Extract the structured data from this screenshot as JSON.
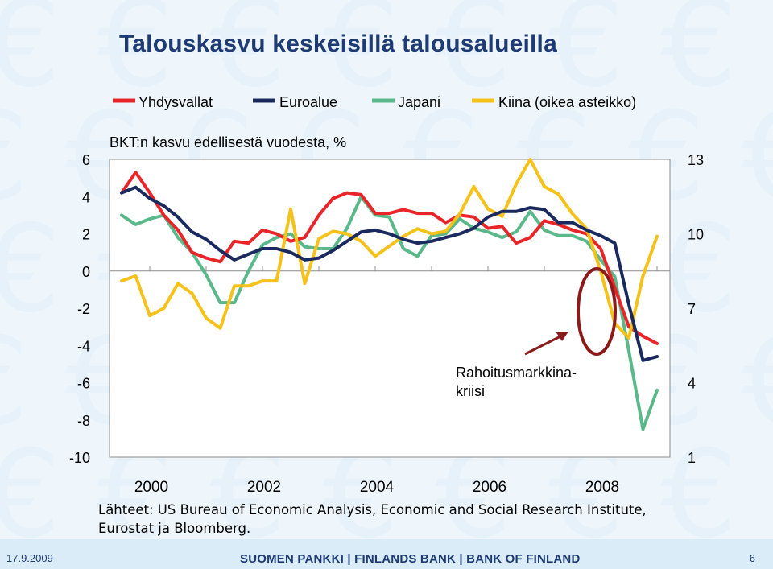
{
  "slide": {
    "title": "Talouskasvu keskeisillä talousalueilla",
    "date": "17.9.2009",
    "brand": "SUOMEN PANKKI | FINLANDS BANK | BANK OF FINLAND",
    "page_number": "6",
    "source_line1": "Lähteet: US Bureau of Economic Analysis, Economic and Social Research Institute,",
    "source_line2": "Eurostat ja Bloomberg."
  },
  "colors": {
    "us": "#e8262a",
    "euro": "#1b2a5e",
    "japan": "#5bb88a",
    "china": "#f5c21b",
    "annotation": "#8b1a1a"
  },
  "chart_data": {
    "type": "line",
    "subtitle": "BKT:n kasvu edellisestä vuodesta, %",
    "annotation": [
      "Rahoitusmarkkina-",
      "kriisi"
    ],
    "x_ticks": [
      "2000",
      "2002",
      "2004",
      "2006",
      "2008"
    ],
    "ylim_left": [
      -10,
      6
    ],
    "ylim_right": [
      1,
      13
    ],
    "y_ticks_left": [
      -10,
      -8,
      -6,
      -4,
      -2,
      0,
      2,
      4,
      6
    ],
    "y_ticks_right": [
      1,
      4,
      7,
      10,
      13
    ],
    "x_start": 1999.5,
    "x_step": 0.25,
    "series": [
      {
        "name": "Yhdysvallat",
        "axis": "left",
        "color_key": "us",
        "values": [
          4.2,
          5.3,
          4.2,
          3.0,
          2.2,
          1.0,
          0.7,
          0.5,
          1.6,
          1.5,
          2.2,
          2.0,
          1.6,
          1.8,
          3.0,
          3.9,
          4.2,
          4.1,
          3.1,
          3.1,
          3.3,
          3.1,
          3.1,
          2.6,
          3.0,
          2.9,
          2.3,
          2.4,
          1.5,
          1.8,
          2.7,
          2.5,
          2.2,
          2.0,
          1.2,
          -0.9,
          -3.0,
          -3.5,
          -3.9
        ]
      },
      {
        "name": "Euroalue",
        "axis": "left",
        "color_key": "euro",
        "values": [
          4.2,
          4.5,
          3.9,
          3.5,
          2.9,
          2.1,
          1.7,
          1.1,
          0.6,
          0.9,
          1.2,
          1.2,
          1.0,
          0.6,
          0.7,
          1.1,
          1.6,
          2.1,
          2.2,
          2.0,
          1.7,
          1.5,
          1.6,
          1.8,
          2.0,
          2.3,
          2.9,
          3.2,
          3.2,
          3.4,
          3.3,
          2.6,
          2.6,
          2.2,
          1.9,
          1.5,
          -1.8,
          -4.8,
          -4.6
        ]
      },
      {
        "name": "Japani",
        "axis": "left",
        "color_key": "japan",
        "values": [
          3.0,
          2.5,
          2.8,
          3.0,
          1.8,
          1.0,
          -0.2,
          -1.7,
          -1.7,
          0.0,
          1.4,
          1.8,
          2.0,
          1.3,
          1.2,
          1.2,
          2.3,
          4.0,
          3.0,
          2.9,
          1.2,
          0.8,
          1.9,
          2.0,
          2.8,
          2.3,
          2.1,
          1.8,
          2.1,
          3.2,
          2.2,
          1.9,
          1.9,
          1.6,
          0.6,
          -0.3,
          -4.3,
          -8.5,
          -6.4
        ]
      },
      {
        "name": "Kiina (oikea asteikko)",
        "axis": "right",
        "color_key": "china",
        "values": [
          8.1,
          8.3,
          6.7,
          7.0,
          8.0,
          7.6,
          6.6,
          6.2,
          7.9,
          7.9,
          8.1,
          8.1,
          11.0,
          8.0,
          9.8,
          10.1,
          10.0,
          9.7,
          9.1,
          9.5,
          9.9,
          10.2,
          10.0,
          10.1,
          10.8,
          11.9,
          11.0,
          10.7,
          12.0,
          13.0,
          11.9,
          11.6,
          10.8,
          10.2,
          8.5,
          6.4,
          5.8,
          8.3,
          9.9
        ]
      }
    ]
  }
}
